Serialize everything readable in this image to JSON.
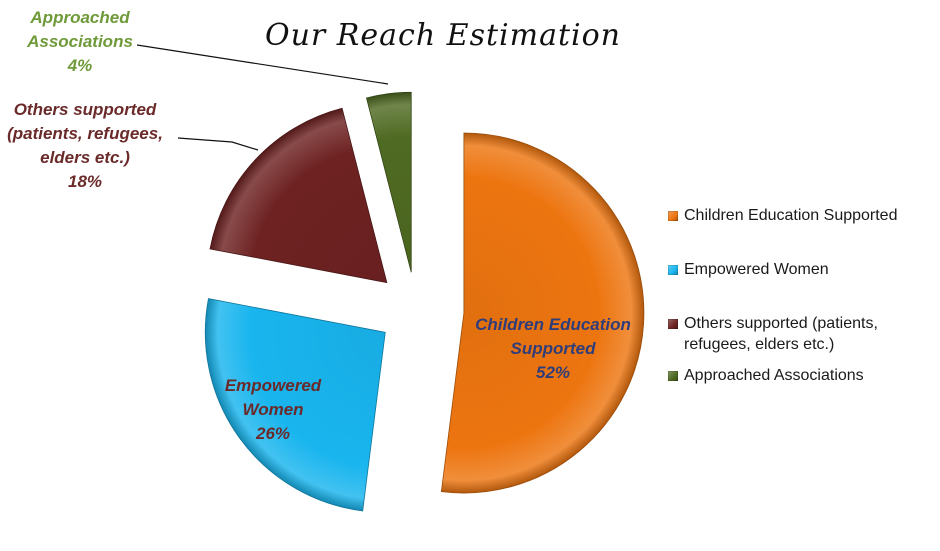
{
  "chart_data": {
    "type": "pie",
    "title": "Our Reach Estimation",
    "legend_position": "right",
    "exploded": true,
    "slices": [
      {
        "name": "Children Education Supported",
        "value": 52,
        "label_lines": [
          "Children Education",
          "Supported",
          "52%"
        ],
        "color": "#ED7510",
        "label_color": "#2F3E7A"
      },
      {
        "name": "Empowered Women",
        "value": 26,
        "label_lines": [
          "Empowered",
          "Women",
          "26%"
        ],
        "color": "#19B5EE",
        "label_color": "#6B2A2A"
      },
      {
        "name": "Others supported (patients, refugees, elders etc.)",
        "value": 18,
        "label_lines": [
          "Others supported",
          "(patients, refugees,",
          "elders etc.)",
          "18%"
        ],
        "color": "#6E2222",
        "label_color": "#6B2A2A"
      },
      {
        "name": "Approached Associations",
        "value": 4,
        "label_lines": [
          "Approached",
          "Associations",
          "4%"
        ],
        "color": "#4F6A22",
        "label_color": "#6F9A3A"
      }
    ],
    "legend": [
      {
        "label": "Children Education Supported",
        "color": "#ED7510"
      },
      {
        "label": "Empowered Women",
        "color": "#19B5EE"
      },
      {
        "label": "Others supported (patients, refugees, elders etc.)",
        "color": "#6E2222"
      },
      {
        "label": "Approached Associations",
        "color": "#4F6A22"
      }
    ]
  }
}
